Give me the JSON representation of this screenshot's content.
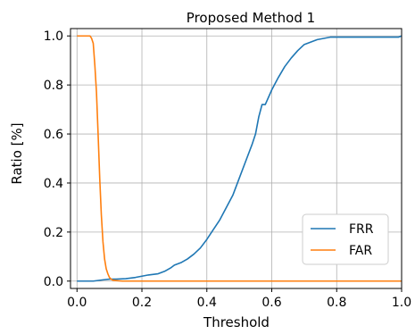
{
  "chart_data": {
    "type": "line",
    "title": "Proposed Method 1",
    "xlabel": "Threshold",
    "ylabel": "Ratio [%]",
    "xlim": [
      -0.02,
      1.0
    ],
    "ylim": [
      -0.03,
      1.03
    ],
    "grid": true,
    "legend_position": "lower right",
    "x_ticks": [
      0.0,
      0.2,
      0.4,
      0.6,
      0.8,
      1.0
    ],
    "x_tick_labels": [
      "0.0",
      "0.2",
      "0.4",
      "0.6",
      "0.8",
      "1.0"
    ],
    "y_ticks": [
      0.0,
      0.2,
      0.4,
      0.6,
      0.8,
      1.0
    ],
    "y_tick_labels": [
      "0.0",
      "0.2",
      "0.4",
      "0.6",
      "0.8",
      "1.0"
    ],
    "series": [
      {
        "name": "FRR",
        "color": "#1f77b4",
        "x": [
          0.0,
          0.05,
          0.08,
          0.1,
          0.12,
          0.15,
          0.18,
          0.2,
          0.22,
          0.25,
          0.27,
          0.29,
          0.3,
          0.32,
          0.34,
          0.36,
          0.38,
          0.4,
          0.42,
          0.44,
          0.46,
          0.48,
          0.5,
          0.52,
          0.54,
          0.55,
          0.56,
          0.57,
          0.58,
          0.6,
          0.62,
          0.64,
          0.66,
          0.68,
          0.7,
          0.72,
          0.74,
          0.76,
          0.78,
          0.8,
          0.85,
          0.9,
          0.95,
          0.99,
          1.0
        ],
        "y": [
          0.0,
          0.0,
          0.005,
          0.008,
          0.008,
          0.01,
          0.015,
          0.02,
          0.025,
          0.03,
          0.04,
          0.055,
          0.065,
          0.075,
          0.09,
          0.11,
          0.135,
          0.17,
          0.21,
          0.25,
          0.3,
          0.35,
          0.42,
          0.49,
          0.56,
          0.6,
          0.67,
          0.72,
          0.72,
          0.78,
          0.83,
          0.875,
          0.91,
          0.94,
          0.965,
          0.975,
          0.985,
          0.99,
          0.995,
          0.995,
          0.995,
          0.995,
          0.995,
          0.995,
          1.0
        ]
      },
      {
        "name": "FAR",
        "color": "#ff7f0e",
        "x": [
          0.0,
          0.02,
          0.04,
          0.045,
          0.05,
          0.055,
          0.06,
          0.065,
          0.07,
          0.075,
          0.08,
          0.085,
          0.09,
          0.095,
          0.1,
          0.105,
          0.11,
          0.12,
          0.13,
          0.14,
          0.15,
          0.2,
          0.3,
          0.5,
          0.7,
          0.9,
          1.0
        ],
        "y": [
          1.0,
          1.0,
          1.0,
          0.99,
          0.97,
          0.88,
          0.77,
          0.6,
          0.42,
          0.27,
          0.16,
          0.09,
          0.05,
          0.03,
          0.015,
          0.008,
          0.004,
          0.002,
          0.001,
          0.0,
          0.0,
          0.0,
          0.0,
          0.0,
          0.0,
          0.0,
          0.0
        ]
      }
    ]
  }
}
